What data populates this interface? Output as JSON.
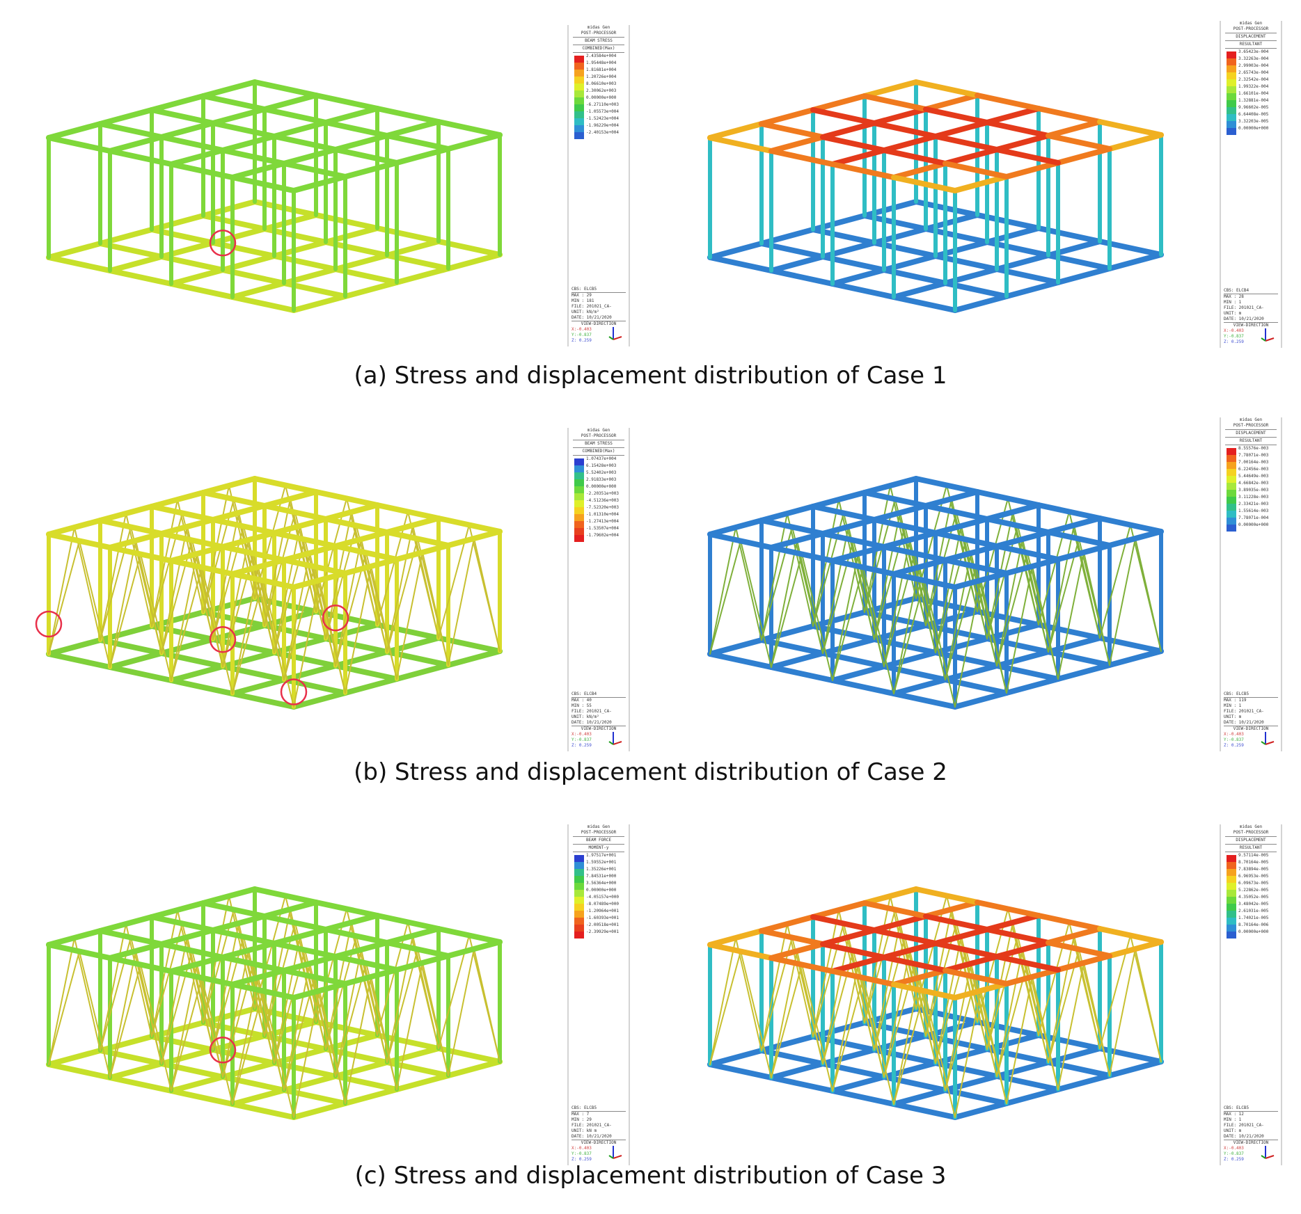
{
  "rows": [
    {
      "caption": "(a) Stress and displacement distribution of Case 1",
      "stress": {
        "program": "midas Gen",
        "module": "POST-PROCESSOR",
        "result": "BEAM STRESS",
        "component": "COMBINED(Max)",
        "ticks": [
          "2.43584e+004",
          "1.95448e+004",
          "1.81681e+004",
          "1.20726e+004",
          "8.06610e+003",
          "2.30062e+003",
          "0.00000e+000",
          "-6.27110e+003",
          "-1.05573e+004",
          "-1.52423e+004",
          "-1.96229e+004",
          "-2.40153e+004"
        ],
        "scale_colors": [
          "#e41f1f",
          "#f0641e",
          "#f6a21e",
          "#f5d220",
          "#dff02a",
          "#a8e83a",
          "#6cd93c",
          "#3fca4a",
          "#32c08a",
          "#2fbdc4",
          "#2f8fd6",
          "#2b5fd0"
        ],
        "cbs": "CBS: ELCB5",
        "max": "MAX : 29",
        "min": "MIN : 181",
        "file": "FILE: 201021_CA-",
        "unit": "UNIT: kN/m²",
        "date": "DATE: 10/21/2020",
        "view": "VIEW-DIRECTION",
        "vx": "X:-0.403",
        "vy": "Y:-0.837",
        "vz": "Z: 0.259",
        "highlights": 1,
        "bracing": false,
        "scheme": "stress"
      },
      "displacement": {
        "program": "midas Gen",
        "module": "POST-PROCESSOR",
        "result": "DISPLACEMENT",
        "component": "RESULTANT",
        "ticks": [
          "3.65423e-004",
          "3.32263e-004",
          "2.99003e-004",
          "2.65743e-004",
          "2.32542e-004",
          "1.99322e-004",
          "1.66101e-004",
          "1.32881e-004",
          "9.96602e-005",
          "6.64408e-005",
          "3.32203e-005",
          "0.00000e+000"
        ],
        "scale_colors": [
          "#e41f1f",
          "#f0641e",
          "#f6a21e",
          "#f5d220",
          "#dff02a",
          "#a8e83a",
          "#6cd93c",
          "#3fca4a",
          "#32c08a",
          "#2fbdc4",
          "#2f8fd6",
          "#2b5fd0"
        ],
        "cbs": "CBS: ELCB4",
        "max": "MAX : 28",
        "min": "MIN : 1",
        "file": "FILE: 201021_CA-",
        "unit": "UNIT: m",
        "date": "DATE: 10/21/2020",
        "view": "VIEW-DIRECTION",
        "vx": "X:-0.403",
        "vy": "Y:-0.837",
        "vz": "Z: 0.259",
        "highlights": 0,
        "bracing": false,
        "scheme": "disp"
      }
    },
    {
      "caption": "(b) Stress and displacement distribution of Case 2",
      "stress": {
        "program": "midas Gen",
        "module": "POST-PROCESSOR",
        "result": "BEAM STRESS",
        "component": "COMBINED(Max)",
        "ticks": [
          "1.07437e+004",
          "6.15428e+003",
          "5.52402e+003",
          "2.91833e+003",
          "0.00000e+000",
          "-2.20351e+003",
          "-4.51236e+003",
          "-7.52320e+003",
          "-1.01310e+004",
          "-1.27413e+004",
          "-1.53507e+004",
          "-1.79602e+004"
        ],
        "scale_colors": [
          "#2b3fd0",
          "#2f8fd6",
          "#32c08a",
          "#3fca4a",
          "#6cd93c",
          "#a8e83a",
          "#dff02a",
          "#f5d220",
          "#f6a21e",
          "#f0641e",
          "#e8401e",
          "#e41f1f"
        ],
        "cbs": "CBS: ELCB4",
        "max": "MAX : 40",
        "min": "MIN : 55",
        "file": "FILE: 201021_CA-",
        "unit": "UNIT: kN/m²",
        "date": "DATE: 10/21/2020",
        "view": "VIEW-DIRECTION",
        "vx": "X:-0.403",
        "vy": "Y:-0.837",
        "vz": "Z: 0.259",
        "highlights": 4,
        "bracing": true,
        "scheme": "stress2"
      },
      "displacement": {
        "program": "midas Gen",
        "module": "POST-PROCESSOR",
        "result": "DISPLACEMENT",
        "component": "RESULTANT",
        "ticks": [
          "8.55576e-003",
          "7.78071e-003",
          "7.00164e-003",
          "6.22456e-003",
          "5.44649e-003",
          "4.66842e-003",
          "3.89035e-003",
          "3.11228e-003",
          "2.33421e-003",
          "1.55614e-003",
          "7.78071e-004",
          "0.00000e+000"
        ],
        "scale_colors": [
          "#e41f1f",
          "#f0641e",
          "#f6a21e",
          "#f5d220",
          "#dff02a",
          "#a8e83a",
          "#6cd93c",
          "#3fca4a",
          "#32c08a",
          "#2fbdc4",
          "#2f8fd6",
          "#2b5fd0"
        ],
        "cbs": "CBS: ELCB5",
        "max": "MAX : 119",
        "min": "MIN : 1",
        "file": "FILE: 201021_CA-",
        "unit": "UNIT: m",
        "date": "DATE: 10/21/2020",
        "view": "VIEW-DIRECTION",
        "vx": "X:-0.403",
        "vy": "Y:-0.837",
        "vz": "Z: 0.259",
        "highlights": 0,
        "bracing": true,
        "scheme": "blue"
      }
    },
    {
      "caption": "(c) Stress and displacement distribution of Case 3",
      "stress": {
        "program": "midas Gen",
        "module": "POST-PROCESSOR",
        "result": "BEAM FORCE",
        "component": "MOMENT-y",
        "ticks": [
          "1.97517e+001",
          "1.59552e+001",
          "1.35226e+001",
          "7.84531e+000",
          "3.56364e+000",
          "0.00000e+000",
          "-4.05157e+000",
          "-8.07489e+000",
          "-1.20964e+001",
          "-1.60393e+001",
          "-2.00518e+001",
          "-2.39929e+001"
        ],
        "scale_colors": [
          "#2b3fd0",
          "#2f8fd6",
          "#32c08a",
          "#3fca4a",
          "#6cd93c",
          "#a8e83a",
          "#dff02a",
          "#f5d220",
          "#f6a21e",
          "#f0641e",
          "#e8401e",
          "#e41f1f"
        ],
        "cbs": "CBS: ELCB5",
        "max": "MAX : 7",
        "min": "MIN : 29",
        "file": "FILE: 201021_CA-",
        "unit": "UNIT: kN m",
        "date": "DATE: 10/21/2020",
        "view": "VIEW-DIRECTION",
        "vx": "X:-0.403",
        "vy": "Y:-0.837",
        "vz": "Z: 0.259",
        "highlights": 1,
        "bracing": true,
        "scheme": "stress"
      },
      "displacement": {
        "program": "midas Gen",
        "module": "POST-PROCESSOR",
        "result": "DISPLACEMENT",
        "component": "RESULTANT",
        "ticks": [
          "9.57114e-005",
          "8.70164e-005",
          "7.83894e-005",
          "6.96953e-005",
          "6.09673e-005",
          "5.22862e-005",
          "4.35052e-005",
          "3.48042e-005",
          "2.61031e-005",
          "1.74021e-005",
          "8.70164e-006",
          "0.00000e+000"
        ],
        "scale_colors": [
          "#e41f1f",
          "#f0641e",
          "#f6a21e",
          "#f5d220",
          "#dff02a",
          "#a8e83a",
          "#6cd93c",
          "#3fca4a",
          "#32c08a",
          "#2fbdc4",
          "#2f8fd6",
          "#2b5fd0"
        ],
        "cbs": "CBS: ELCB5",
        "max": "MAX : 12",
        "min": "MIN : 1",
        "file": "FILE: 201021_CA-",
        "unit": "UNIT: m",
        "date": "DATE: 10/21/2020",
        "view": "VIEW-DIRECTION",
        "vx": "X:-0.403",
        "vy": "Y:-0.837",
        "vz": "Z: 0.259",
        "highlights": 0,
        "bracing": true,
        "scheme": "disp"
      }
    }
  ]
}
